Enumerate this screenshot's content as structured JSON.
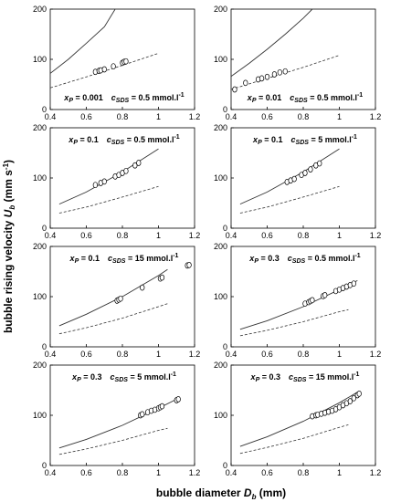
{
  "figure": {
    "xlabel_main": "bubble diameter ",
    "xlabel_sym": "D",
    "xlabel_sub": "b",
    "xlabel_unit": " (mm)",
    "ylabel_main": "bubble rising velocity ",
    "ylabel_sym": "U",
    "ylabel_sub": "b",
    "ylabel_unit": " (mm s",
    "ylabel_sup": "-1",
    "ylabel_close": ")"
  },
  "chart_data": [
    {
      "type": "scatter",
      "annotation": {
        "xp": "0.001",
        "csds": "0.5 mmol.l"
      },
      "xlim": [
        0.4,
        1.2
      ],
      "ylim": [
        0,
        200
      ],
      "xticks": [
        "0.4",
        "0.6",
        "0.8",
        "1",
        "1.2"
      ],
      "yticks": [
        "0",
        "100",
        "200"
      ],
      "solid": [
        [
          0.4,
          72
        ],
        [
          0.5,
          100
        ],
        [
          0.6,
          132
        ],
        [
          0.7,
          165
        ],
        [
          0.76,
          200
        ]
      ],
      "dashed": [
        [
          0.4,
          43
        ],
        [
          0.6,
          65
        ],
        [
          0.8,
          88
        ],
        [
          1.0,
          112
        ]
      ],
      "points": [
        [
          0.65,
          75
        ],
        [
          0.67,
          77
        ],
        [
          0.68,
          78
        ],
        [
          0.7,
          80
        ],
        [
          0.75,
          86
        ],
        [
          0.8,
          93
        ],
        [
          0.81,
          95
        ],
        [
          0.82,
          96
        ]
      ]
    },
    {
      "type": "scatter",
      "annotation": {
        "xp": "0.01",
        "csds": "0.5 mmol.l"
      },
      "xlim": [
        0.4,
        1.2
      ],
      "ylim": [
        0,
        200
      ],
      "xticks": [
        "0.4",
        "0.6",
        "0.8",
        "1",
        "1.2"
      ],
      "yticks": [
        "0",
        "100",
        "200"
      ],
      "solid": [
        [
          0.4,
          66
        ],
        [
          0.5,
          92
        ],
        [
          0.6,
          120
        ],
        [
          0.7,
          150
        ],
        [
          0.8,
          182
        ],
        [
          0.85,
          200
        ]
      ],
      "dashed": [
        [
          0.4,
          40
        ],
        [
          0.6,
          62
        ],
        [
          0.8,
          84
        ],
        [
          1.0,
          108
        ]
      ],
      "points": [
        [
          0.42,
          40
        ],
        [
          0.48,
          53
        ],
        [
          0.55,
          60
        ],
        [
          0.57,
          62
        ],
        [
          0.6,
          65
        ],
        [
          0.64,
          70
        ],
        [
          0.67,
          74
        ],
        [
          0.7,
          76
        ]
      ]
    },
    {
      "type": "scatter",
      "annotation": {
        "xp": "0.1",
        "csds": "0.5 mmol.l"
      },
      "xlim": [
        0.4,
        1.2
      ],
      "ylim": [
        0,
        200
      ],
      "xticks": [
        "0.4",
        "0.6",
        "0.8",
        "1",
        "1.2"
      ],
      "yticks": [
        "0",
        "100",
        "200"
      ],
      "solid": [
        [
          0.45,
          48
        ],
        [
          0.6,
          72
        ],
        [
          0.8,
          112
        ],
        [
          1.0,
          158
        ]
      ],
      "dashed": [
        [
          0.45,
          30
        ],
        [
          0.6,
          42
        ],
        [
          0.8,
          62
        ],
        [
          1.0,
          83
        ]
      ],
      "points": [
        [
          0.65,
          86
        ],
        [
          0.68,
          90
        ],
        [
          0.7,
          93
        ],
        [
          0.76,
          103
        ],
        [
          0.78,
          106
        ],
        [
          0.8,
          110
        ],
        [
          0.82,
          114
        ],
        [
          0.87,
          125
        ],
        [
          0.89,
          130
        ]
      ]
    },
    {
      "type": "scatter",
      "annotation": {
        "xp": "0.1",
        "csds": "5 mmol.l"
      },
      "xlim": [
        0.4,
        1.2
      ],
      "ylim": [
        0,
        200
      ],
      "xticks": [
        "0.4",
        "0.6",
        "0.8",
        "1",
        "1.2"
      ],
      "yticks": [
        "0",
        "100",
        "200"
      ],
      "solid": [
        [
          0.45,
          48
        ],
        [
          0.6,
          72
        ],
        [
          0.8,
          112
        ],
        [
          1.0,
          158
        ]
      ],
      "dashed": [
        [
          0.45,
          30
        ],
        [
          0.6,
          42
        ],
        [
          0.8,
          62
        ],
        [
          1.0,
          83
        ]
      ],
      "points": [
        [
          0.71,
          92
        ],
        [
          0.73,
          95
        ],
        [
          0.75,
          98
        ],
        [
          0.79,
          106
        ],
        [
          0.81,
          110
        ],
        [
          0.84,
          117
        ],
        [
          0.87,
          125
        ],
        [
          0.89,
          129
        ]
      ]
    },
    {
      "type": "scatter",
      "annotation": {
        "xp": "0.1",
        "csds": "15 mmol.l"
      },
      "xlim": [
        0.4,
        1.2
      ],
      "ylim": [
        0,
        200
      ],
      "xticks": [
        "0.4",
        "0.6",
        "0.8",
        "1",
        "1.2"
      ],
      "yticks": [
        "0",
        "100",
        "200"
      ],
      "solid": [
        [
          0.45,
          42
        ],
        [
          0.6,
          65
        ],
        [
          0.8,
          100
        ],
        [
          1.0,
          142
        ],
        [
          1.05,
          154
        ]
      ],
      "dashed": [
        [
          0.45,
          26
        ],
        [
          0.6,
          38
        ],
        [
          0.8,
          57
        ],
        [
          1.0,
          80
        ],
        [
          1.05,
          86
        ]
      ],
      "points": [
        [
          0.77,
          92
        ],
        [
          0.78,
          94
        ],
        [
          0.79,
          96
        ],
        [
          0.91,
          118
        ],
        [
          1.01,
          136
        ],
        [
          1.02,
          138
        ],
        [
          1.16,
          162
        ],
        [
          1.17,
          163
        ]
      ]
    },
    {
      "type": "scatter",
      "annotation": {
        "xp": "0.3",
        "csds": "0.5 mmol.l"
      },
      "xlim": [
        0.4,
        1.2
      ],
      "ylim": [
        0,
        200
      ],
      "xticks": [
        "0.4",
        "0.6",
        "0.8",
        "1",
        "1.2"
      ],
      "yticks": [
        "0",
        "100",
        "200"
      ],
      "solid": [
        [
          0.45,
          35
        ],
        [
          0.6,
          52
        ],
        [
          0.8,
          80
        ],
        [
          1.0,
          114
        ],
        [
          1.1,
          132
        ]
      ],
      "dashed": [
        [
          0.45,
          22
        ],
        [
          0.6,
          33
        ],
        [
          0.8,
          50
        ],
        [
          1.0,
          70
        ],
        [
          1.05,
          74
        ]
      ],
      "points": [
        [
          0.81,
          86
        ],
        [
          0.83,
          89
        ],
        [
          0.84,
          91
        ],
        [
          0.85,
          93
        ],
        [
          0.91,
          101
        ],
        [
          0.92,
          103
        ],
        [
          0.98,
          111
        ],
        [
          1.0,
          114
        ],
        [
          1.02,
          117
        ],
        [
          1.04,
          120
        ],
        [
          1.06,
          123
        ],
        [
          1.08,
          126
        ]
      ]
    },
    {
      "type": "scatter",
      "annotation": {
        "xp": "0.3",
        "csds": "5 mmol.l"
      },
      "xlim": [
        0.4,
        1.2
      ],
      "ylim": [
        0,
        200
      ],
      "xticks": [
        "0.4",
        "0.6",
        "0.8",
        "1",
        "1.2"
      ],
      "yticks": [
        "0",
        "100",
        "200"
      ],
      "solid": [
        [
          0.45,
          35
        ],
        [
          0.6,
          52
        ],
        [
          0.8,
          80
        ],
        [
          1.0,
          114
        ],
        [
          1.1,
          132
        ]
      ],
      "dashed": [
        [
          0.45,
          22
        ],
        [
          0.6,
          33
        ],
        [
          0.8,
          50
        ],
        [
          1.0,
          70
        ],
        [
          1.05,
          74
        ]
      ],
      "points": [
        [
          0.9,
          100
        ],
        [
          0.91,
          102
        ],
        [
          0.94,
          106
        ],
        [
          0.96,
          109
        ],
        [
          0.98,
          111
        ],
        [
          1.0,
          114
        ],
        [
          1.01,
          116
        ],
        [
          1.02,
          118
        ],
        [
          1.1,
          130
        ],
        [
          1.11,
          132
        ]
      ]
    },
    {
      "type": "scatter",
      "annotation": {
        "xp": "0.3",
        "csds": "15 mmol.l"
      },
      "xlim": [
        0.4,
        1.2
      ],
      "ylim": [
        0,
        200
      ],
      "xticks": [
        "0.4",
        "0.6",
        "0.8",
        "1",
        "1.2"
      ],
      "yticks": [
        "0",
        "100",
        "200"
      ],
      "solid": [
        [
          0.45,
          38
        ],
        [
          0.6,
          57
        ],
        [
          0.8,
          88
        ],
        [
          1.0,
          125
        ],
        [
          1.1,
          146
        ]
      ],
      "dashed": [
        [
          0.45,
          24
        ],
        [
          0.6,
          36
        ],
        [
          0.8,
          54
        ],
        [
          1.0,
          76
        ],
        [
          1.05,
          81
        ]
      ],
      "points": [
        [
          0.85,
          98
        ],
        [
          0.87,
          100
        ],
        [
          0.88,
          101
        ],
        [
          0.9,
          103
        ],
        [
          0.92,
          105
        ],
        [
          0.94,
          107
        ],
        [
          0.96,
          109
        ],
        [
          0.98,
          112
        ],
        [
          1.0,
          116
        ],
        [
          1.02,
          120
        ],
        [
          1.04,
          124
        ],
        [
          1.06,
          128
        ],
        [
          1.08,
          134
        ],
        [
          1.1,
          140
        ],
        [
          1.11,
          143
        ]
      ]
    }
  ]
}
